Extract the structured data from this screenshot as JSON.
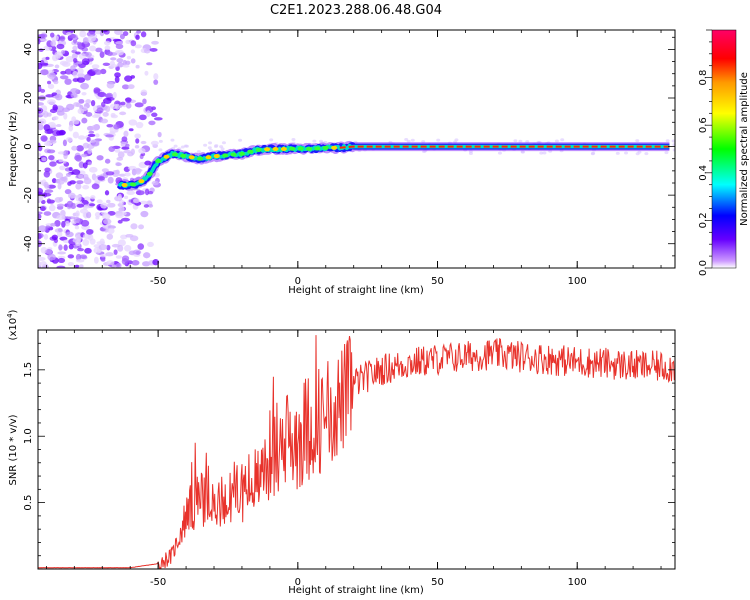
{
  "title": "C2E1.2023.288.06.48.G04",
  "chart_data": [
    {
      "type": "heatmap",
      "xlabel": "Height of straight line (km)",
      "ylabel": "Frequency (Hz)",
      "xlim": [
        -93,
        135
      ],
      "ylim": [
        -50,
        48
      ],
      "xticks": [
        "-50",
        "0",
        "50",
        "100"
      ],
      "xtick_values": [
        -50,
        0,
        50,
        100
      ],
      "yticks": [
        "-40",
        "-20",
        "0",
        "20",
        "40"
      ],
      "ytick_values": [
        -40,
        -20,
        0,
        20,
        40
      ],
      "trace": [
        {
          "x": -64,
          "y": -16
        },
        {
          "x": -58,
          "y": -15.5
        },
        {
          "x": -54,
          "y": -13
        },
        {
          "x": -50,
          "y": -6
        },
        {
          "x": -45,
          "y": -3
        },
        {
          "x": -40,
          "y": -4
        },
        {
          "x": -35,
          "y": -5
        },
        {
          "x": -30,
          "y": -4
        },
        {
          "x": -25,
          "y": -3.5
        },
        {
          "x": -20,
          "y": -3
        },
        {
          "x": -15,
          "y": -1.5
        },
        {
          "x": -10,
          "y": -1
        },
        {
          "x": -5,
          "y": -1
        },
        {
          "x": 0,
          "y": -0.8
        },
        {
          "x": 5,
          "y": -1
        },
        {
          "x": 10,
          "y": -0.5
        },
        {
          "x": 15,
          "y": -0.5
        },
        {
          "x": 20,
          "y": 0
        },
        {
          "x": 40,
          "y": 0
        },
        {
          "x": 60,
          "y": 0
        },
        {
          "x": 80,
          "y": 0
        },
        {
          "x": 100,
          "y": 0
        },
        {
          "x": 120,
          "y": 0
        },
        {
          "x": 133,
          "y": 0
        }
      ],
      "colorbar": {
        "label": "Normalized spectral amplitude",
        "ticks": [
          "0.0",
          "0.2",
          "0.4",
          "0.6",
          "0.8"
        ],
        "tick_values": [
          0.0,
          0.2,
          0.4,
          0.6,
          0.8
        ],
        "range": [
          0,
          1
        ],
        "colors": [
          "#ffffff",
          "#cc99ff",
          "#6600ff",
          "#0000ff",
          "#00ffff",
          "#00ff00",
          "#ffff00",
          "#ff9900",
          "#ff0000",
          "#ff0066"
        ]
      }
    },
    {
      "type": "line",
      "xlabel": "Height of straight line (km)",
      "ylabel": "SNR (10 * v/v)",
      "multiplier": "(x10",
      "multiplier_exp": "4",
      "multiplier_close": ")",
      "xlim": [
        -93,
        135
      ],
      "ylim": [
        0,
        1.8
      ],
      "xticks": [
        "-50",
        "0",
        "50",
        "100"
      ],
      "xtick_values": [
        -50,
        0,
        50,
        100
      ],
      "yticks": [
        "0.5",
        "1.0",
        "1.5"
      ],
      "ytick_values": [
        0.5,
        1.0,
        1.5
      ],
      "color": "#e8322b",
      "envelope": [
        {
          "x": -93,
          "y": 0.01
        },
        {
          "x": -60,
          "y": 0.01
        },
        {
          "x": -50,
          "y": 0.04
        },
        {
          "x": -45,
          "y": 0.1
        },
        {
          "x": -40,
          "y": 0.4
        },
        {
          "x": -35,
          "y": 0.55
        },
        {
          "x": -30,
          "y": 0.45
        },
        {
          "x": -25,
          "y": 0.55
        },
        {
          "x": -20,
          "y": 0.6
        },
        {
          "x": -15,
          "y": 0.65
        },
        {
          "x": -10,
          "y": 0.85
        },
        {
          "x": -5,
          "y": 0.95
        },
        {
          "x": 0,
          "y": 1.0
        },
        {
          "x": 5,
          "y": 1.1
        },
        {
          "x": 10,
          "y": 1.15
        },
        {
          "x": 15,
          "y": 1.25
        },
        {
          "x": 20,
          "y": 1.4
        },
        {
          "x": 25,
          "y": 1.45
        },
        {
          "x": 30,
          "y": 1.5
        },
        {
          "x": 40,
          "y": 1.55
        },
        {
          "x": 50,
          "y": 1.58
        },
        {
          "x": 60,
          "y": 1.6
        },
        {
          "x": 70,
          "y": 1.62
        },
        {
          "x": 80,
          "y": 1.6
        },
        {
          "x": 90,
          "y": 1.58
        },
        {
          "x": 100,
          "y": 1.56
        },
        {
          "x": 110,
          "y": 1.55
        },
        {
          "x": 120,
          "y": 1.53
        },
        {
          "x": 135,
          "y": 1.52
        }
      ]
    }
  ]
}
